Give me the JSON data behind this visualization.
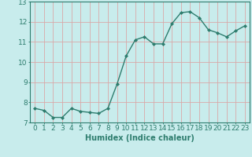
{
  "x": [
    0,
    1,
    2,
    3,
    4,
    5,
    6,
    7,
    8,
    9,
    10,
    11,
    12,
    13,
    14,
    15,
    16,
    17,
    18,
    19,
    20,
    21,
    22,
    23
  ],
  "y": [
    7.7,
    7.6,
    7.25,
    7.25,
    7.7,
    7.55,
    7.5,
    7.45,
    7.7,
    8.9,
    10.3,
    11.1,
    11.25,
    10.9,
    10.9,
    11.9,
    12.45,
    12.5,
    12.2,
    11.6,
    11.45,
    11.25,
    11.55,
    11.8
  ],
  "line_color": "#2e7d6e",
  "marker": "D",
  "marker_size": 2.0,
  "line_width": 1.0,
  "bg_color": "#c8ecec",
  "grid_color": "#d9a8a8",
  "xlabel": "Humidex (Indice chaleur)",
  "ylim": [
    7,
    13
  ],
  "xlim": [
    -0.5,
    23.5
  ],
  "yticks": [
    7,
    8,
    9,
    10,
    11,
    12,
    13
  ],
  "xticks": [
    0,
    1,
    2,
    3,
    4,
    5,
    6,
    7,
    8,
    9,
    10,
    11,
    12,
    13,
    14,
    15,
    16,
    17,
    18,
    19,
    20,
    21,
    22,
    23
  ],
  "xlabel_fontsize": 7,
  "tick_fontsize": 6.5,
  "tick_color": "#2e7d6e",
  "spine_color": "#2e7d6e"
}
